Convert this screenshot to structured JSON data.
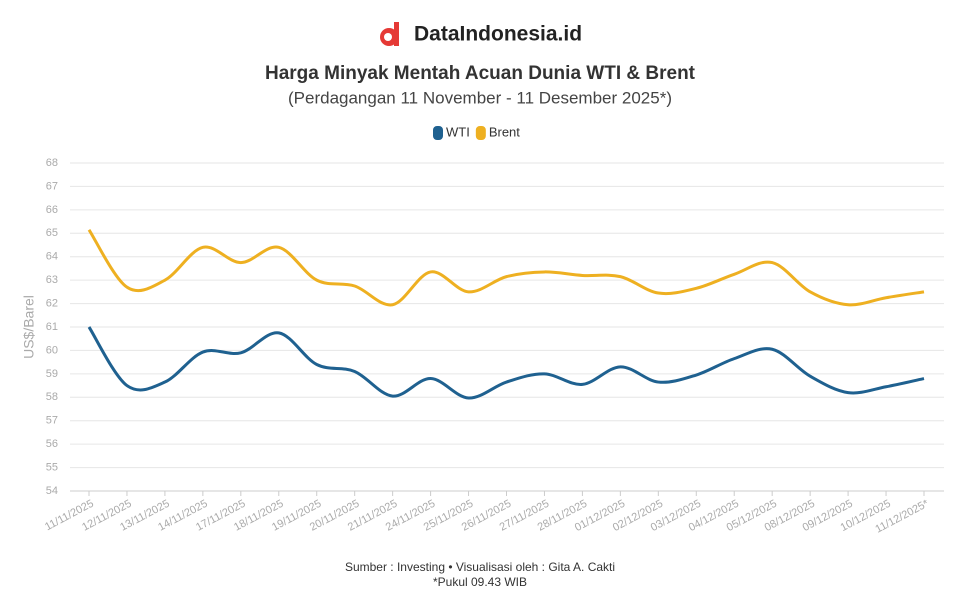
{
  "brand": "DataIndonesia.id",
  "chart_data": {
    "type": "line",
    "title": "Harga Minyak Mentah Acuan Dunia WTI & Brent",
    "subtitle": "(Perdagangan 11 November - 11 Desember 2025*)",
    "y_label": "US$/Barel",
    "source": "Sumber : Investing • Visualisasi oleh : Gita A. Cakti",
    "note": "*Pukul 09.43 WIB",
    "categories": [
      "11/11/2025",
      "12/11/2025",
      "13/11/2025",
      "14/11/2025",
      "17/11/2025",
      "18/11/2025",
      "19/11/2025",
      "20/11/2025",
      "21/11/2025",
      "24/11/2025",
      "25/11/2025",
      "26/11/2025",
      "27/11/2025",
      "28/11/2025",
      "01/12/2025",
      "02/12/2025",
      "03/12/2025",
      "04/12/2025",
      "05/12/2025",
      "08/12/2025",
      "09/12/2025",
      "10/12/2025",
      "11/12/2025*"
    ],
    "series": [
      {
        "name": "WTI",
        "color": "#1f6190",
        "values": [
          61.0,
          58.5,
          58.65,
          59.93,
          59.9,
          60.75,
          59.4,
          59.1,
          58.05,
          58.8,
          57.97,
          58.65,
          59.0,
          58.55,
          59.3,
          58.65,
          58.95,
          59.65,
          60.05,
          58.9,
          58.2,
          58.45,
          58.8
        ]
      },
      {
        "name": "Brent",
        "color": "#eeb021",
        "values": [
          65.15,
          62.7,
          63.0,
          64.4,
          63.75,
          64.4,
          63.0,
          62.75,
          61.95,
          63.35,
          62.5,
          63.15,
          63.35,
          63.2,
          63.15,
          62.45,
          62.65,
          63.25,
          63.75,
          62.5,
          61.95,
          62.25,
          62.5
        ]
      }
    ],
    "ylim": [
      54,
      68
    ],
    "yticks": [
      54,
      55,
      56,
      57,
      58,
      59,
      60,
      61,
      62,
      63,
      64,
      65,
      66,
      67,
      68
    ],
    "grid": true,
    "legend": "top"
  }
}
